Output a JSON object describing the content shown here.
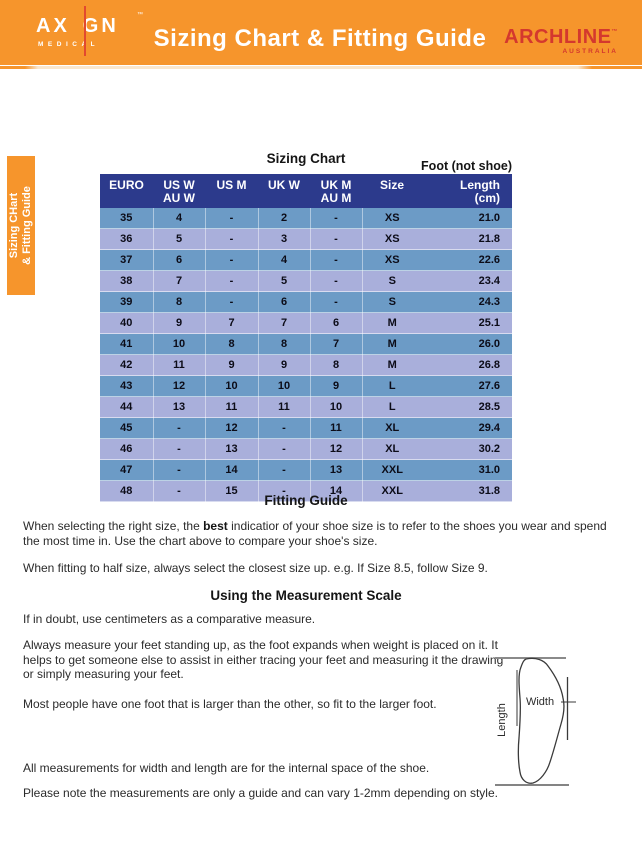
{
  "brand_colors": {
    "orange": "#F6952C",
    "red": "#D4382E",
    "navy": "#2C3A8C",
    "row_blue": "#6C9BC6",
    "row_periwinkle": "#A9AFDB"
  },
  "header": {
    "axign": {
      "left": "AX",
      "right": "GN",
      "trademark": "™",
      "subtitle": "MEDICAL"
    },
    "title": "Sizing Chart & Fitting Guide",
    "archline": {
      "name": "ARCHLINE",
      "trademark": "™",
      "subtitle": "AUSTRALIA"
    }
  },
  "side_tab": {
    "line1": "Sizing CHart",
    "line2": "& Fitting Guide"
  },
  "sizing_chart": {
    "title": "Sizing Chart",
    "note": "Foot (not shoe)",
    "columns": [
      {
        "l1": "EURO",
        "l2": ""
      },
      {
        "l1": "US W",
        "l2": "AU W"
      },
      {
        "l1": "US M",
        "l2": ""
      },
      {
        "l1": "UK W",
        "l2": ""
      },
      {
        "l1": "UK M",
        "l2": "AU M"
      },
      {
        "l1": "Size",
        "l2": ""
      },
      {
        "l1": "Length",
        "l2": "(cm)"
      }
    ],
    "rows": [
      [
        "35",
        "4",
        "-",
        "2",
        "-",
        "XS",
        "21.0"
      ],
      [
        "36",
        "5",
        "-",
        "3",
        "-",
        "XS",
        "21.8"
      ],
      [
        "37",
        "6",
        "-",
        "4",
        "-",
        "XS",
        "22.6"
      ],
      [
        "38",
        "7",
        "-",
        "5",
        "-",
        "S",
        "23.4"
      ],
      [
        "39",
        "8",
        "-",
        "6",
        "-",
        "S",
        "24.3"
      ],
      [
        "40",
        "9",
        "7",
        "7",
        "6",
        "M",
        "25.1"
      ],
      [
        "41",
        "10",
        "8",
        "8",
        "7",
        "M",
        "26.0"
      ],
      [
        "42",
        "11",
        "9",
        "9",
        "8",
        "M",
        "26.8"
      ],
      [
        "43",
        "12",
        "10",
        "10",
        "9",
        "L",
        "27.6"
      ],
      [
        "44",
        "13",
        "11",
        "11",
        "10",
        "L",
        "28.5"
      ],
      [
        "45",
        "-",
        "12",
        "-",
        "11",
        "XL",
        "29.4"
      ],
      [
        "46",
        "-",
        "13",
        "-",
        "12",
        "XL",
        "30.2"
      ],
      [
        "47",
        "-",
        "14",
        "-",
        "13",
        "XXL",
        "31.0"
      ],
      [
        "48",
        "-",
        "15",
        "-",
        "14",
        "XXL",
        "31.8"
      ]
    ]
  },
  "fitting_guide": {
    "title": "Fitting Guide",
    "para1_pre": "When selecting the right size, the ",
    "para1_bold": "best",
    "para1_post": " indicatior of your shoe size is to refer to the shoes you wear and spend the most time in. Use the chart above to compare your shoe's size.",
    "para2": "When fitting to half size, always select the closest size up. e.g. If Size 8.5, follow Size 9."
  },
  "measurement": {
    "title": "Using the Measurement Scale",
    "para1": "If in doubt, use centimeters as a comparative measure.",
    "para2": "Always measure your feet standing up, as the foot expands when weight is placed on it. It helps to get someone else to assist in either tracing your feet and measuring it the drawing or simply measuring your feet.",
    "para3": "Most people have one foot that is larger than the other, so fit to the larger foot.",
    "para4": "All measurements for width and length are for the internal space of the shoe.",
    "para5": "Please note the measurements are only a guide and can vary 1-2mm depending on style.",
    "diagram": {
      "width_label": "Width",
      "length_label": "Length"
    }
  }
}
